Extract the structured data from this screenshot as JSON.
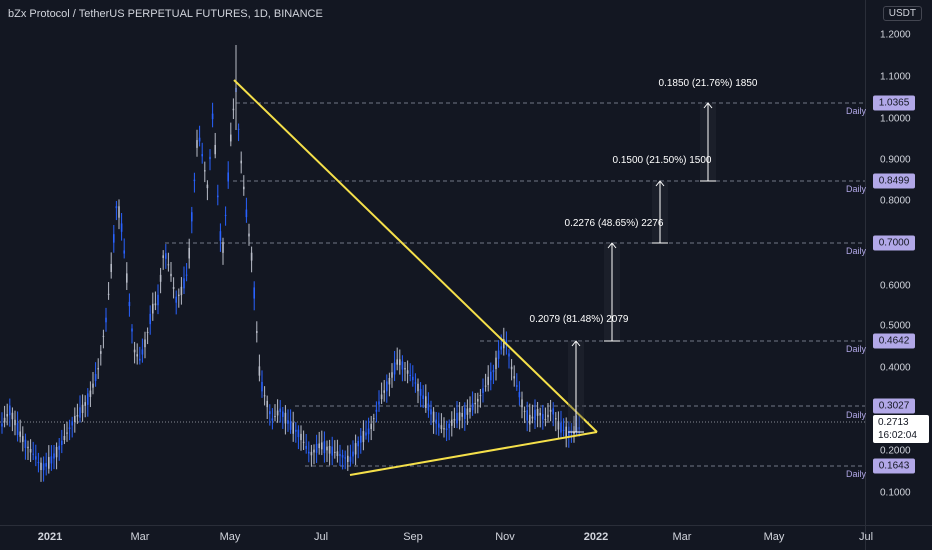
{
  "header": {
    "title": "bZx Protocol / TetherUS PERPETUAL FUTURES, 1D, BINANCE",
    "currency": "USDT"
  },
  "price_axis": {
    "ticks": [
      "1.2000",
      "1.1000",
      "1.0000",
      "0.9000",
      "0.8000",
      "0.7000",
      "0.6000",
      "0.5000",
      "0.4000",
      "0.2000",
      "0.1000"
    ]
  },
  "time_axis": {
    "ticks": [
      "2021",
      "Mar",
      "May",
      "Jul",
      "Sep",
      "Nov",
      "2022",
      "Mar",
      "May",
      "Jul"
    ]
  },
  "levels": [
    {
      "value": "1.0365",
      "tag": "Daily"
    },
    {
      "value": "0.8499",
      "tag": "Daily"
    },
    {
      "value": "0.7000",
      "tag": "Daily"
    },
    {
      "value": "0.4642",
      "tag": "Daily"
    },
    {
      "value": "0.3027",
      "tag": "Daily"
    },
    {
      "value": "0.1643",
      "tag": "Daily"
    }
  ],
  "measurements": [
    {
      "label": "0.2079 (81.48%) 2079"
    },
    {
      "label": "0.2276 (48.65%) 2276"
    },
    {
      "label": "0.1500 (21.50%) 1500"
    },
    {
      "label": "0.1850 (21.76%) 1850"
    }
  ],
  "last_price": {
    "value": "0.2713",
    "countdown": "16:02:04"
  },
  "colors": {
    "background": "#131722",
    "candle_up": "#b8bcc7",
    "candle_down": "#2962ff",
    "trendline": "#f5e04a",
    "level_tag": "#b2a8e8",
    "grid_dashed": "#8a8fa0"
  }
}
